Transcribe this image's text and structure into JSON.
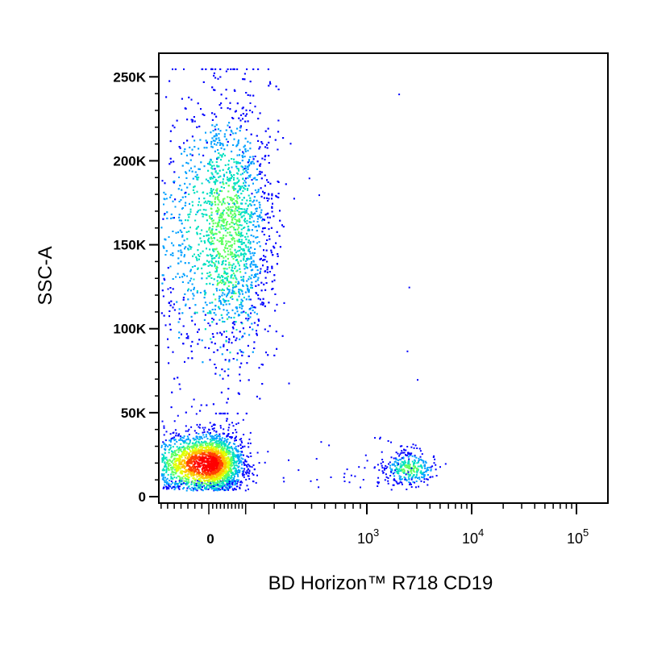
{
  "chart_data": {
    "type": "scatter",
    "title": "",
    "xlabel": "BD Horizon™ R718 CD19",
    "ylabel": "SSC-A",
    "x_scale": "biexponential",
    "xlim": [
      -200,
      150000
    ],
    "ylim": [
      0,
      262144
    ],
    "x_ticks": [
      {
        "value": 0,
        "base": "0",
        "exp": ""
      },
      {
        "value": 1000,
        "base": "10",
        "exp": "3"
      },
      {
        "value": 10000,
        "base": "10",
        "exp": "4"
      },
      {
        "value": 100000,
        "base": "10",
        "exp": "5"
      }
    ],
    "y_ticks": [
      {
        "value": 0,
        "label": "0"
      },
      {
        "value": 50000,
        "label": "50K"
      },
      {
        "value": 100000,
        "label": "100K"
      },
      {
        "value": 150000,
        "label": "150K"
      },
      {
        "value": 200000,
        "label": "200K"
      },
      {
        "value": 250000,
        "label": "250K"
      }
    ],
    "color_scale": [
      "#0000ff",
      "#00a0ff",
      "#00e0c0",
      "#60ff60",
      "#e0ff00",
      "#ffc000",
      "#ff4000",
      "#ff0000"
    ],
    "populations": [
      {
        "name": "",
        "x_center": 0,
        "x_spread": 45,
        "y_center": 20000,
        "y_spread": 9000,
        "count": 2600,
        "peak_density": 1.0
      },
      {
        "name": "",
        "x_center": 40,
        "x_spread": 70,
        "y_center": 165000,
        "y_spread": 38000,
        "count": 4000,
        "peak_density": 0.45
      },
      {
        "name": "",
        "x_center": 2500,
        "x_spread": 0.13,
        "y_center": 17000,
        "y_spread": 5000,
        "count": 320,
        "peak_density": 0.45
      }
    ],
    "grid": false,
    "legend": "none"
  }
}
